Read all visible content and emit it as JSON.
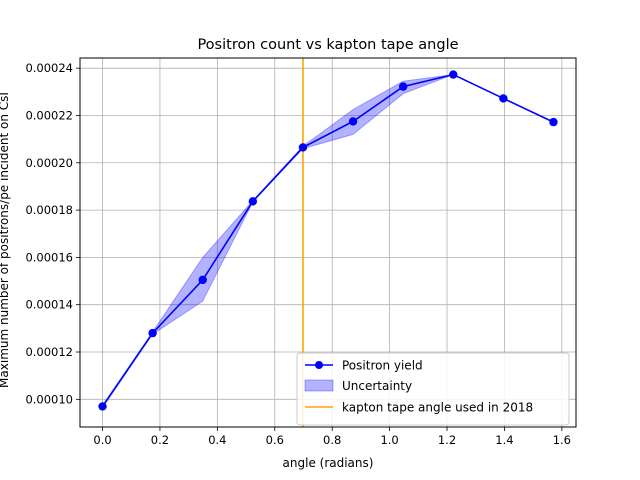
{
  "chart_data": {
    "type": "line",
    "title": "Positron count vs kapton tape angle",
    "xlabel": "angle (radians)",
    "ylabel": "Maximum number of positrons/pe incident on CsI",
    "xlim": [
      -0.0785,
      1.6493
    ],
    "ylim": [
      8.83e-05,
      0.0002443
    ],
    "xticks": [
      "0.0",
      "0.2",
      "0.4",
      "0.6",
      "0.8",
      "1.0",
      "1.2",
      "1.4",
      "1.6"
    ],
    "yticks": [
      "0.00010",
      "0.00012",
      "0.00014",
      "0.00016",
      "0.00018",
      "0.00020",
      "0.00022",
      "0.00024"
    ],
    "grid": true,
    "legend_position": "lower-right",
    "series": [
      {
        "name": "Positron yield",
        "x": [
          0.0,
          0.1745,
          0.349,
          0.5236,
          0.6981,
          0.8727,
          1.0472,
          1.2217,
          1.3963,
          1.5708
        ],
        "values": [
          9.7e-05,
          0.000128,
          0.0001505,
          0.0001837,
          0.0002065,
          0.0002175,
          0.0002322,
          0.0002373,
          0.0002272,
          0.0002172
        ],
        "color": "#0000ff"
      }
    ],
    "uncertainty": {
      "name": "Uncertainty",
      "x": [
        0.0,
        0.1745,
        0.349,
        0.5236,
        0.6981,
        0.8727,
        1.0472,
        1.2217
      ],
      "lower": [
        9.65e-05,
        0.0001275,
        0.0001415,
        0.0001835,
        0.000206,
        0.000212,
        0.0002292,
        0.0002373
      ],
      "upper": [
        9.75e-05,
        0.0001285,
        0.00016,
        0.000184,
        0.000207,
        0.0002225,
        0.0002345,
        0.0002373
      ],
      "color": "#0000ff"
    },
    "vline": {
      "name": "kapton tape angle used in 2018",
      "x": 0.6981,
      "color": "#ffa500"
    }
  }
}
